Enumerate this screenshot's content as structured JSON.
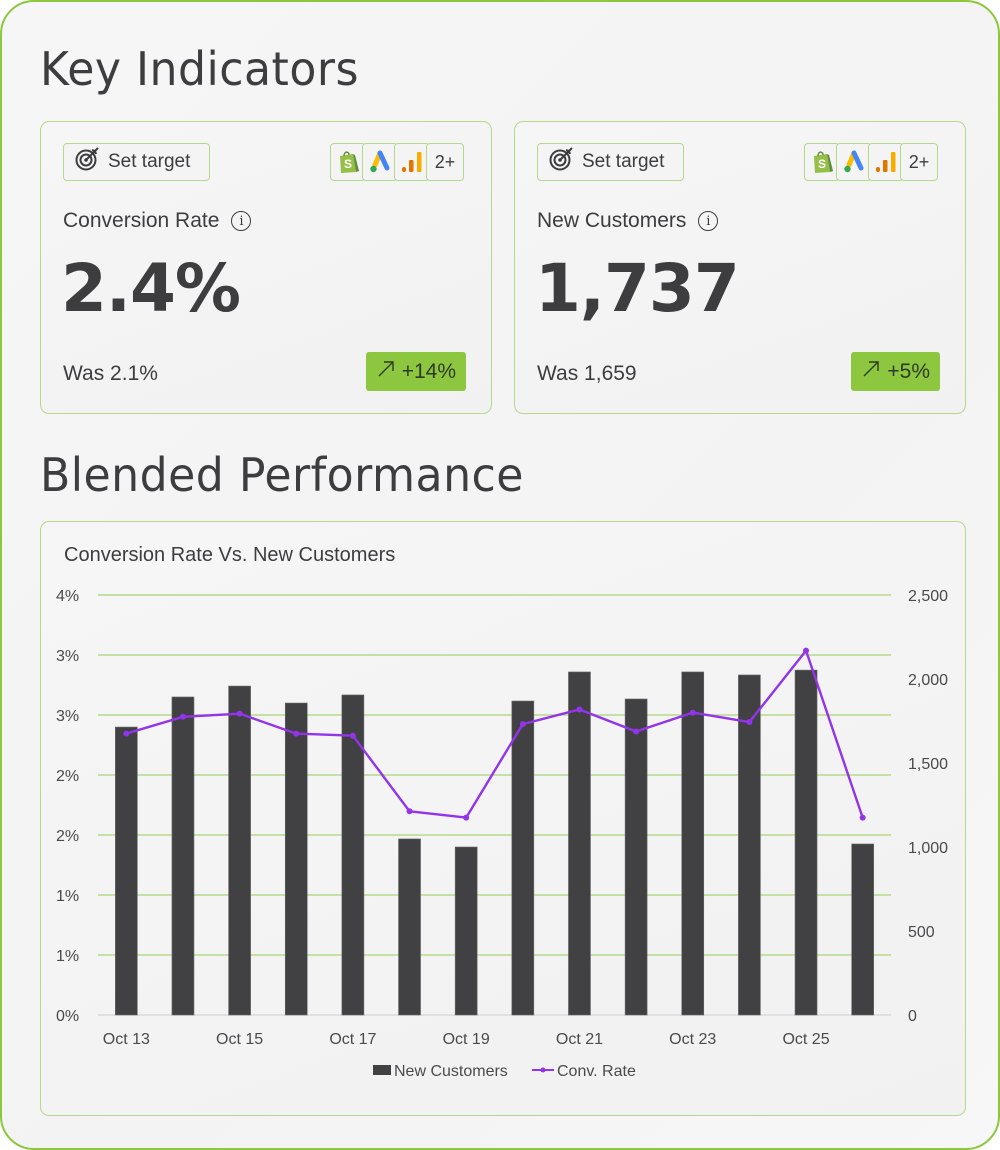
{
  "sections": {
    "key_indicators_title": "Key Indicators",
    "blended_title": "Blended Performance"
  },
  "cards": [
    {
      "set_target_label": "Set target",
      "sources": [
        "shopify-icon",
        "google-ads-icon",
        "google-analytics-icon"
      ],
      "sources_more": "2+",
      "label": "Conversion Rate",
      "info": "i",
      "value": "2.4%",
      "was": "Was 2.1%",
      "delta": "+14%",
      "delta_icon": "arrow-up-right-icon"
    },
    {
      "set_target_label": "Set target",
      "sources": [
        "shopify-icon",
        "google-ads-icon",
        "google-analytics-icon"
      ],
      "sources_more": "2+",
      "label": "New Customers",
      "info": "i",
      "value": "1,737",
      "was": "Was 1,659",
      "delta": "+5%",
      "delta_icon": "arrow-up-right-icon"
    }
  ],
  "colors": {
    "accent_green": "#8dc63f",
    "border_green": "#b5d98b",
    "bar": "#414143",
    "line": "#9333ea",
    "text": "#3d3d3f"
  },
  "chart_data": {
    "type": "bar",
    "title": "Conversion Rate Vs. New Customers",
    "categories": [
      "Oct 13",
      "Oct 14",
      "Oct 15",
      "Oct 16",
      "Oct 17",
      "Oct 18",
      "Oct 19",
      "Oct 20",
      "Oct 21",
      "Oct 22",
      "Oct 23",
      "Oct 24",
      "Oct 25",
      "Oct 26"
    ],
    "x_tick_labels": [
      "Oct 13",
      "",
      "Oct 15",
      "",
      "Oct 17",
      "",
      "Oct 19",
      "",
      "Oct 21",
      "",
      "Oct 23",
      "",
      "Oct 25",
      ""
    ],
    "series": [
      {
        "name": "New Customers",
        "type": "bar",
        "axis": "right",
        "values": [
          1714,
          1893,
          1958,
          1857,
          1905,
          1048,
          1000,
          1869,
          2042,
          1881,
          2042,
          2024,
          2053,
          1018
        ]
      },
      {
        "name": "Conv. Rate",
        "type": "line",
        "axis": "left",
        "values": [
          2.68,
          2.84,
          2.87,
          2.68,
          2.66,
          1.94,
          1.88,
          2.77,
          2.91,
          2.7,
          2.88,
          2.79,
          3.47,
          1.88
        ]
      }
    ],
    "left_axis": {
      "ylim": [
        0,
        4
      ],
      "tick_labels": [
        "4%",
        "3%",
        "3%",
        "2%",
        "2%",
        "1%",
        "1%",
        "0%"
      ]
    },
    "right_axis": {
      "ylim": [
        0,
        2500
      ],
      "tick_labels": [
        "2,500",
        "2,000",
        "1,500",
        "1,000",
        "500",
        "0"
      ]
    },
    "xlabel": "",
    "ylabel": "",
    "grid": true,
    "legend": {
      "position": "bottom",
      "entries": [
        "New Customers",
        "Conv. Rate"
      ]
    }
  }
}
